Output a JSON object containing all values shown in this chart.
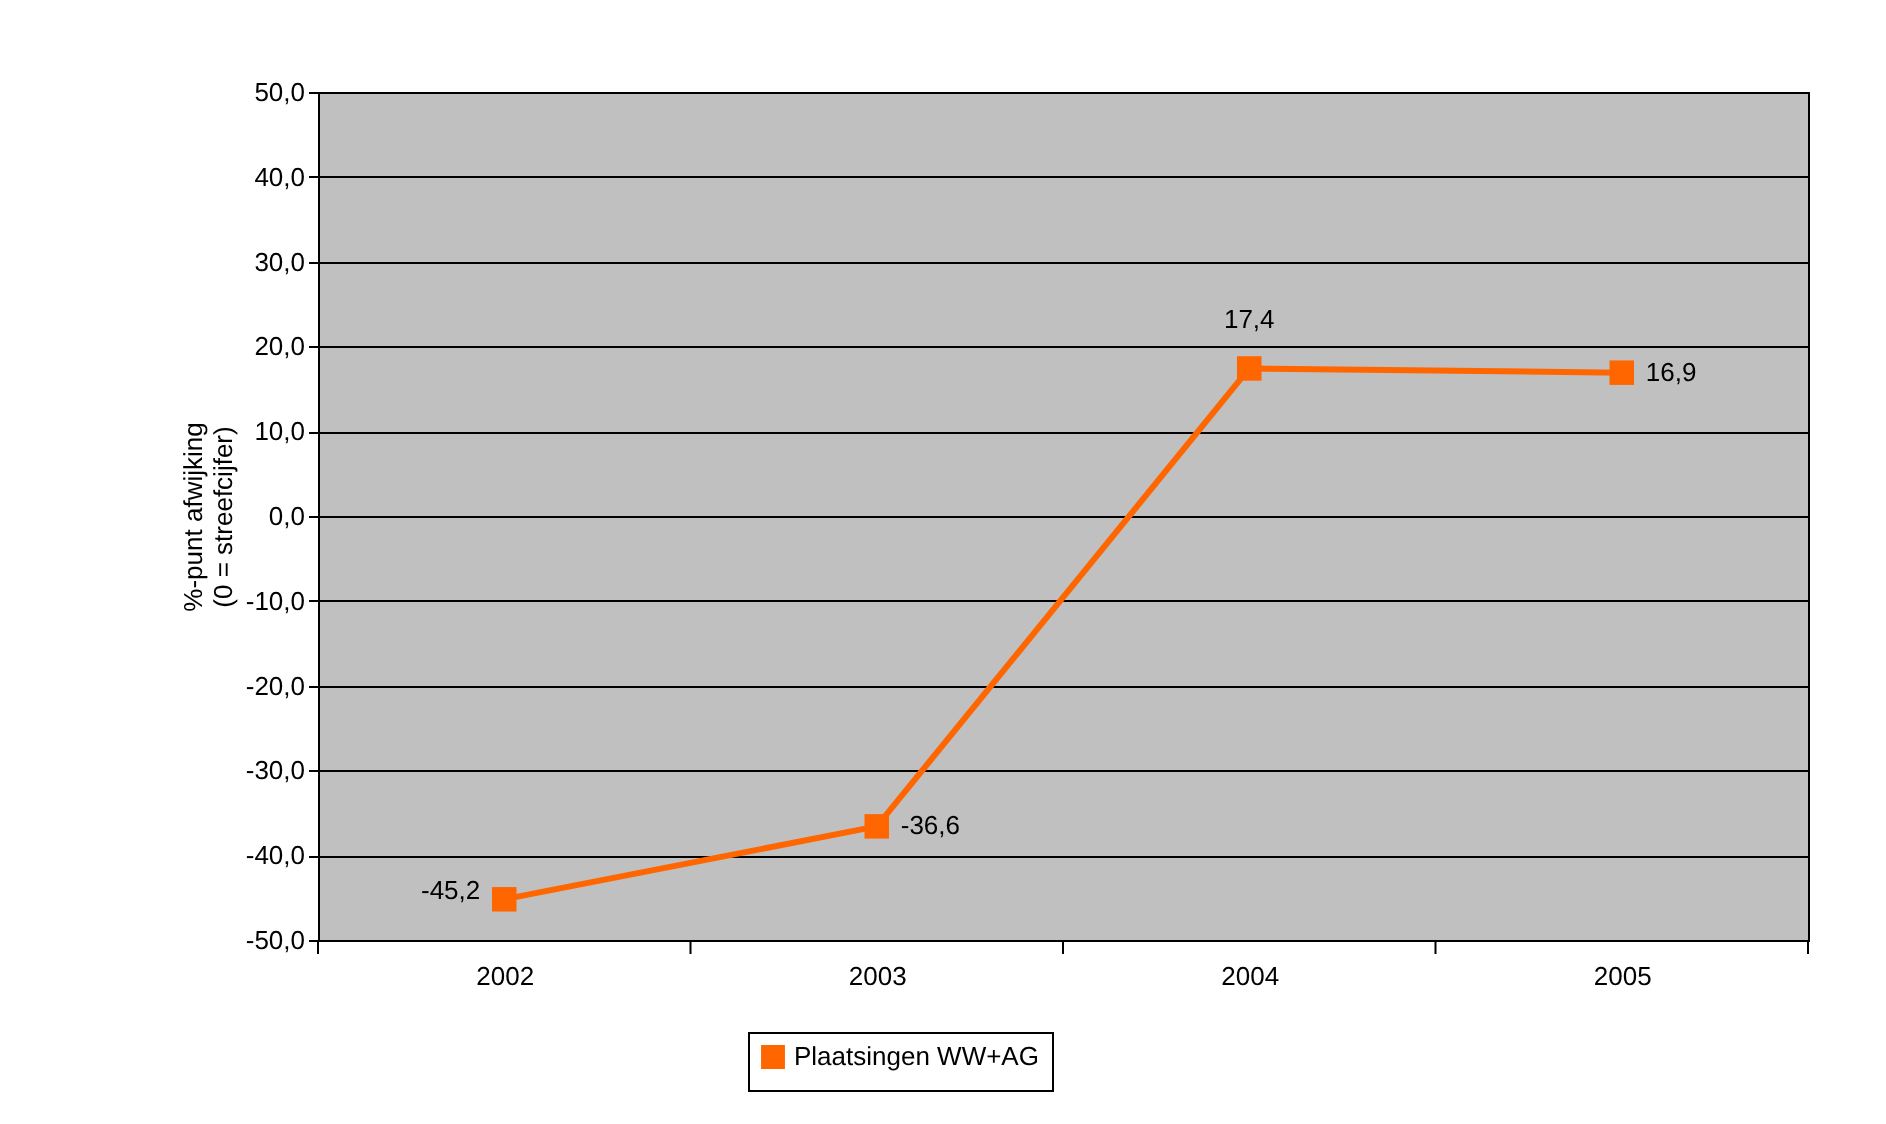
{
  "chart_data": {
    "type": "line",
    "ylabel": "%-punt afwijking\n(0 = streefcijfer)",
    "categories": [
      "2002",
      "2003",
      "2004",
      "2005"
    ],
    "series": [
      {
        "name": "Plaatsingen WW+AG",
        "color": "#ff6600",
        "values": [
          -45.2,
          -36.6,
          17.4,
          16.9
        ],
        "value_labels": [
          "-45,2",
          "-36,6",
          "17,4",
          "16,9"
        ]
      }
    ],
    "ylim": [
      -50,
      50
    ],
    "yticks": [
      {
        "value": -50,
        "label": "-50,0"
      },
      {
        "value": -40,
        "label": "-40,0"
      },
      {
        "value": -30,
        "label": "-30,0"
      },
      {
        "value": -20,
        "label": "-20,0"
      },
      {
        "value": -10,
        "label": "-10,0"
      },
      {
        "value": 0,
        "label": "0,0"
      },
      {
        "value": 10,
        "label": "10,0"
      },
      {
        "value": 20,
        "label": "20,0"
      },
      {
        "value": 30,
        "label": "30,0"
      },
      {
        "value": 40,
        "label": "40,0"
      },
      {
        "value": 50,
        "label": "50,0"
      }
    ],
    "grid": "y",
    "legend": "bottom",
    "marker": "square",
    "line_style": "solid"
  }
}
